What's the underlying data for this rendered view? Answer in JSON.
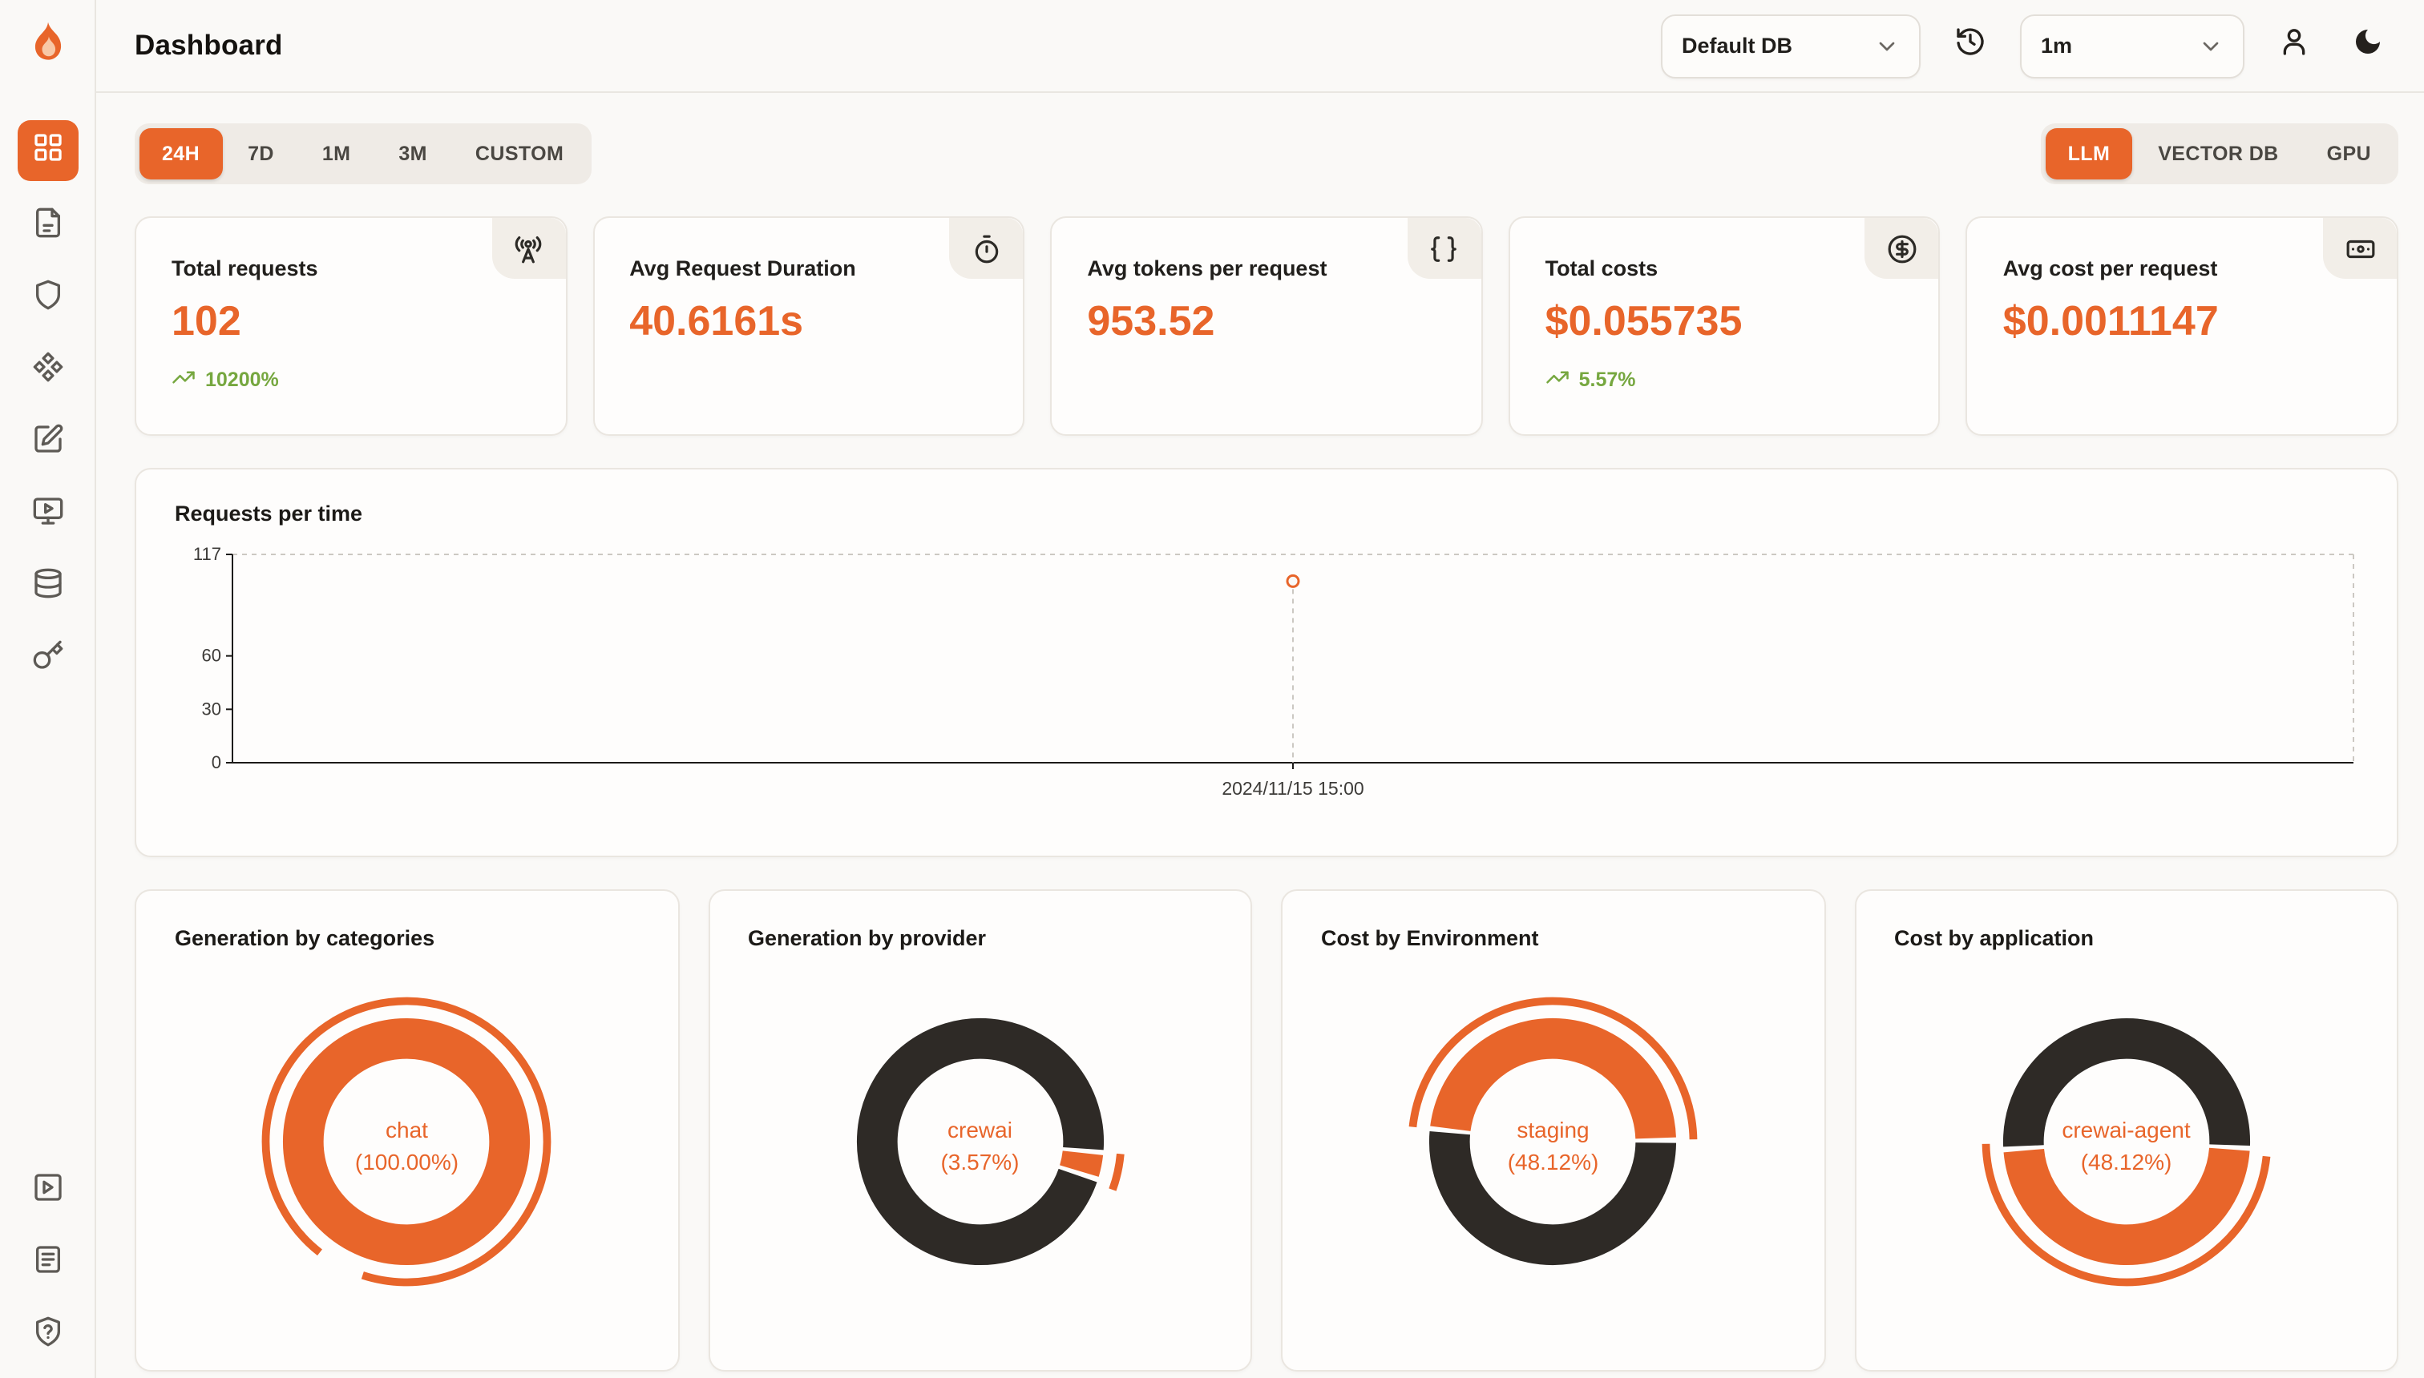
{
  "app": {
    "accent": "#E8652A",
    "dark_segment": "#2E2A26",
    "green": "#76A73F"
  },
  "header": {
    "title": "Dashboard",
    "db_select": {
      "value": "Default DB",
      "icon": "chevron-down-icon"
    },
    "interval_select": {
      "value": "1m",
      "icon": "chevron-down-icon"
    },
    "icons": [
      "history-icon",
      "user-icon",
      "moon-icon"
    ],
    "logo_icon": "flame-logo-icon"
  },
  "sidebar": {
    "items": [
      {
        "icon": "dashboard-grid-icon",
        "active": true
      },
      {
        "icon": "requests-file-icon",
        "active": false
      },
      {
        "icon": "exceptions-shield-icon",
        "active": false
      },
      {
        "icon": "prompts-component-icon",
        "active": false
      },
      {
        "icon": "vault-edit-icon",
        "active": false
      },
      {
        "icon": "playground-monitor-icon",
        "active": false
      },
      {
        "icon": "database-config-icon",
        "active": false
      },
      {
        "icon": "api-keys-key-icon",
        "active": false
      }
    ],
    "bottom_items": [
      {
        "icon": "getting-started-play-icon"
      },
      {
        "icon": "docs-icon"
      },
      {
        "icon": "support-shield-question-icon"
      }
    ]
  },
  "filters": {
    "time_ranges": [
      {
        "label": "24H",
        "active": true
      },
      {
        "label": "7D",
        "active": false
      },
      {
        "label": "1M",
        "active": false
      },
      {
        "label": "3M",
        "active": false
      },
      {
        "label": "CUSTOM",
        "active": false
      }
    ],
    "sources": [
      {
        "label": "LLM",
        "active": true
      },
      {
        "label": "VECTOR DB",
        "active": false
      },
      {
        "label": "GPU",
        "active": false
      }
    ]
  },
  "stats": [
    {
      "label": "Total requests",
      "value": "102",
      "delta": "10200%",
      "icon": "radio-tower-icon"
    },
    {
      "label": "Avg Request Duration",
      "value": "40.6161s",
      "delta": "",
      "icon": "timer-icon"
    },
    {
      "label": "Avg tokens per request",
      "value": "953.52",
      "delta": "",
      "icon": "braces-icon"
    },
    {
      "label": "Total costs",
      "value": "$0.055735",
      "delta": "5.57%",
      "icon": "circle-dollar-icon"
    },
    {
      "label": "Avg cost per request",
      "value": "$0.0011147",
      "delta": "",
      "icon": "banknote-icon"
    }
  ],
  "chart_data": [
    {
      "type": "line",
      "title": "Requests per time",
      "xlabel": "",
      "ylabel": "",
      "ylim": [
        0,
        117
      ],
      "y_ticks": [
        0,
        30,
        60,
        117
      ],
      "grid": "dashed-top-right-border",
      "points": [
        {
          "x": "2024/11/15 15:00",
          "y": 102
        }
      ]
    },
    {
      "type": "donut",
      "title": "Generation by categories",
      "center_label": "chat",
      "center_pct": "(100.00%)",
      "rotation": 0,
      "segments": [
        {
          "name": "chat",
          "pct": 100,
          "color": "#E8652A"
        }
      ],
      "accent_arc": {
        "start": 218,
        "end": 558
      }
    },
    {
      "type": "donut",
      "title": "Generation by provider",
      "center_label": "crewai",
      "center_pct": "(3.57%)",
      "rotation": 95,
      "segments": [
        {
          "name": "crewai",
          "pct": 3.57,
          "color": "#E8652A"
        },
        {
          "name": "",
          "pct": 96.43,
          "color": "#2E2A26"
        }
      ],
      "accent_arc": {
        "start": 95,
        "end": 110
      }
    },
    {
      "type": "donut",
      "title": "Cost by Environment",
      "center_label": "staging",
      "center_pct": "(48.12%)",
      "rotation": 276,
      "segments": [
        {
          "name": "staging",
          "pct": 48.12,
          "color": "#E8652A"
        },
        {
          "name": "",
          "pct": 51.88,
          "color": "#2E2A26"
        }
      ],
      "accent_arc": {
        "start": 276,
        "end": 449
      }
    },
    {
      "type": "donut",
      "title": "Cost by application",
      "center_label": "crewai-agent",
      "center_pct": "(48.12%)",
      "rotation": 93,
      "segments": [
        {
          "name": "crewai-agent",
          "pct": 48.12,
          "color": "#E8652A"
        },
        {
          "name": "",
          "pct": 51.88,
          "color": "#2E2A26"
        }
      ],
      "accent_arc": {
        "start": 96,
        "end": 269
      }
    }
  ]
}
